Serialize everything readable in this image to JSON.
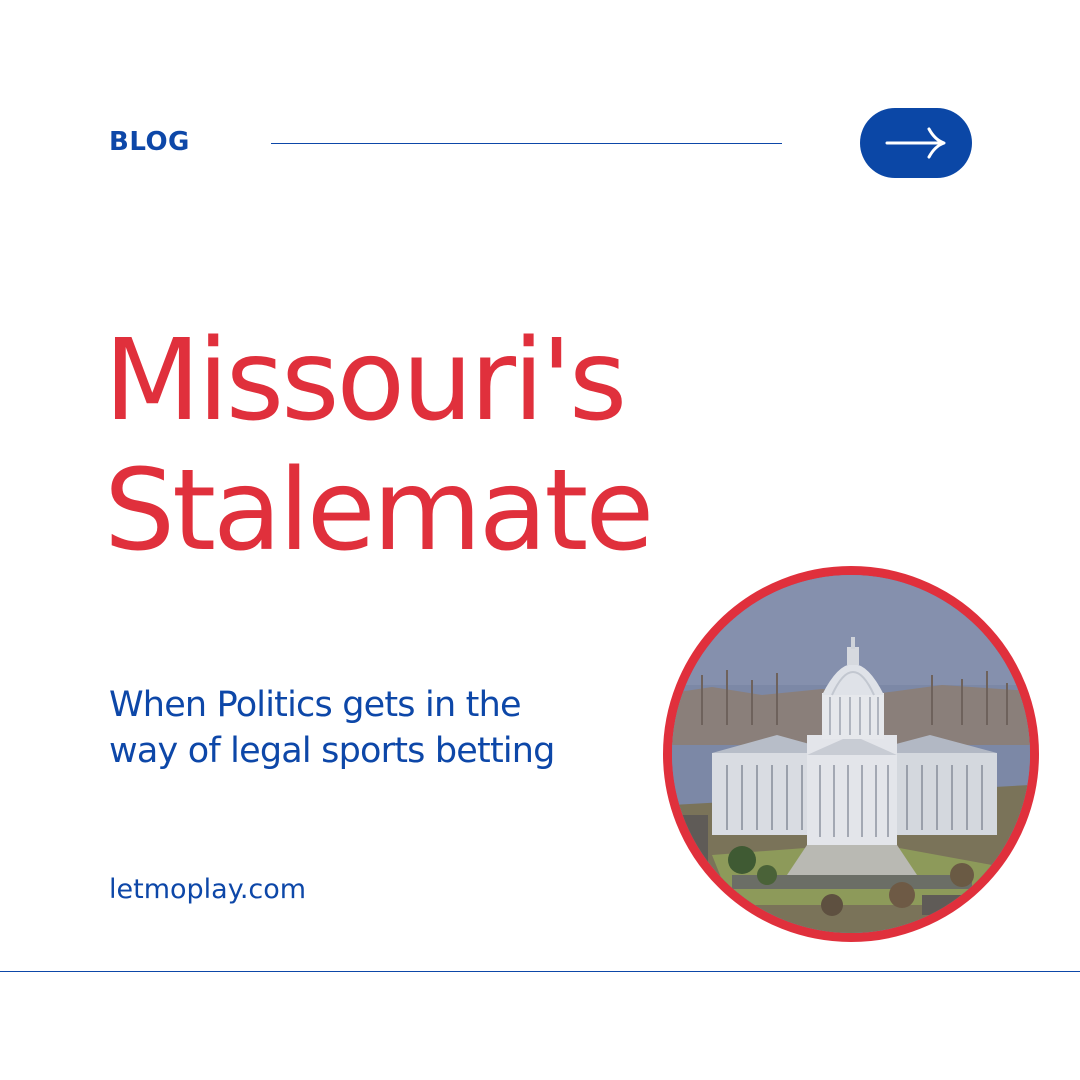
{
  "header": {
    "label": "BLOG",
    "next_icon": "arrow-right-icon"
  },
  "headline": {
    "line1": "Missouri's",
    "line2": "Stalemate"
  },
  "subtitle": {
    "line1": "When Politics gets in the",
    "line2": "way of legal sports betting"
  },
  "footer": {
    "website": "letmoplay.com"
  },
  "colors": {
    "accent_blue": "#0d47a8",
    "accent_red": "#e0303c",
    "background": "#ffffff"
  }
}
